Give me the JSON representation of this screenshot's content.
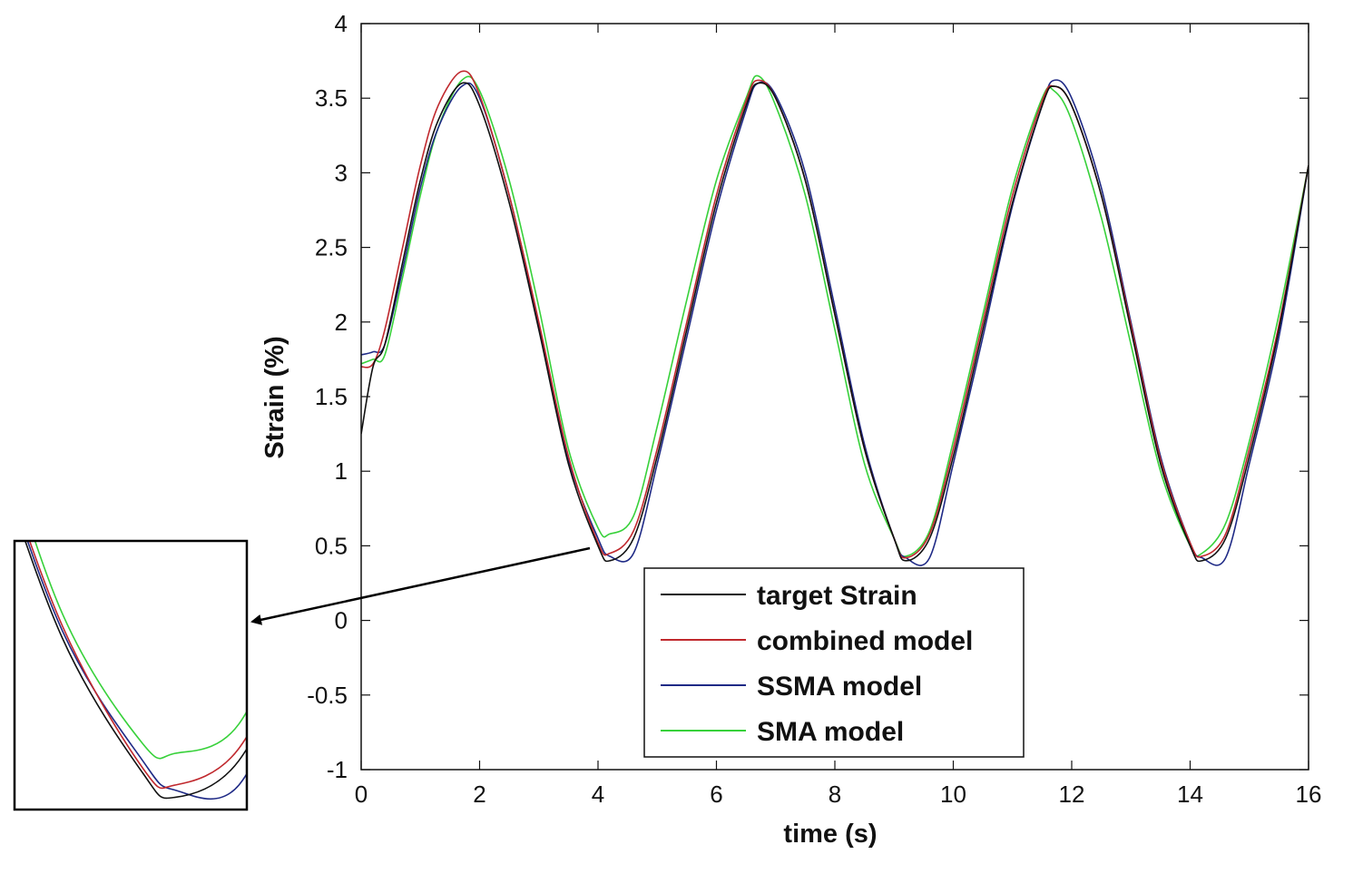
{
  "chart_data": {
    "type": "line",
    "title": "",
    "xlabel": "time (s)",
    "ylabel": "Strain (%)",
    "xlim": [
      0,
      16
    ],
    "ylim": [
      -1,
      4
    ],
    "xticks": [
      0,
      2,
      4,
      6,
      8,
      10,
      12,
      14,
      16
    ],
    "yticks": [
      -1,
      -0.5,
      0,
      0.5,
      1,
      1.5,
      2,
      2.5,
      3,
      3.5,
      4
    ],
    "grid": false,
    "legend_position": "bottom-right",
    "x": [
      0,
      0.2,
      0.4,
      0.7,
      1.0,
      1.3,
      1.7,
      2.0,
      2.5,
      3.0,
      3.5,
      4.0,
      4.2,
      4.6,
      5.0,
      5.5,
      6.0,
      6.5,
      6.7,
      7.0,
      7.5,
      8.0,
      8.5,
      9.0,
      9.2,
      9.6,
      10.0,
      10.5,
      11.0,
      11.5,
      11.7,
      12.0,
      12.5,
      13.0,
      13.5,
      14.0,
      14.2,
      14.6,
      15.0,
      15.5,
      16.0
    ],
    "series": [
      {
        "name": "target Strain",
        "color": "#111111",
        "values": [
          1.25,
          1.7,
          1.85,
          2.4,
          2.95,
          3.35,
          3.6,
          3.45,
          2.8,
          1.95,
          1.05,
          0.5,
          0.4,
          0.55,
          1.1,
          1.95,
          2.8,
          3.45,
          3.6,
          3.5,
          2.95,
          2.05,
          1.15,
          0.55,
          0.4,
          0.55,
          1.1,
          1.95,
          2.8,
          3.45,
          3.58,
          3.45,
          2.85,
          1.95,
          1.05,
          0.5,
          0.4,
          0.55,
          1.1,
          1.95,
          3.05
        ]
      },
      {
        "name": "combined model",
        "color": "#c0282d",
        "values": [
          1.7,
          1.72,
          1.95,
          2.5,
          3.05,
          3.45,
          3.68,
          3.52,
          2.85,
          2.0,
          1.1,
          0.52,
          0.45,
          0.6,
          1.15,
          2.0,
          2.85,
          3.48,
          3.62,
          3.5,
          2.95,
          2.05,
          1.15,
          0.55,
          0.42,
          0.58,
          1.15,
          2.0,
          2.85,
          3.48,
          3.58,
          3.45,
          2.85,
          1.98,
          1.08,
          0.52,
          0.43,
          0.58,
          1.15,
          1.98,
          3.05
        ]
      },
      {
        "name": "SSMA model",
        "color": "#1f2a86",
        "values": [
          1.78,
          1.8,
          1.85,
          2.35,
          2.9,
          3.3,
          3.58,
          3.5,
          2.85,
          1.98,
          1.08,
          0.55,
          0.43,
          0.45,
          1.05,
          1.9,
          2.75,
          3.42,
          3.6,
          3.52,
          3.0,
          2.1,
          1.18,
          0.55,
          0.42,
          0.42,
          1.05,
          1.9,
          2.78,
          3.45,
          3.62,
          3.5,
          2.9,
          2.0,
          1.1,
          0.52,
          0.42,
          0.42,
          1.05,
          1.9,
          3.05
        ]
      },
      {
        "name": "SMA model",
        "color": "#37d13a",
        "values": [
          1.72,
          1.75,
          1.78,
          2.3,
          2.85,
          3.3,
          3.62,
          3.55,
          2.95,
          2.1,
          1.15,
          0.62,
          0.58,
          0.7,
          1.3,
          2.15,
          2.95,
          3.5,
          3.65,
          3.45,
          2.85,
          1.95,
          1.05,
          0.55,
          0.43,
          0.6,
          1.2,
          2.05,
          2.9,
          3.5,
          3.55,
          3.35,
          2.7,
          1.85,
          1.0,
          0.5,
          0.45,
          0.65,
          1.2,
          2.05,
          3.05
        ]
      }
    ]
  }
}
